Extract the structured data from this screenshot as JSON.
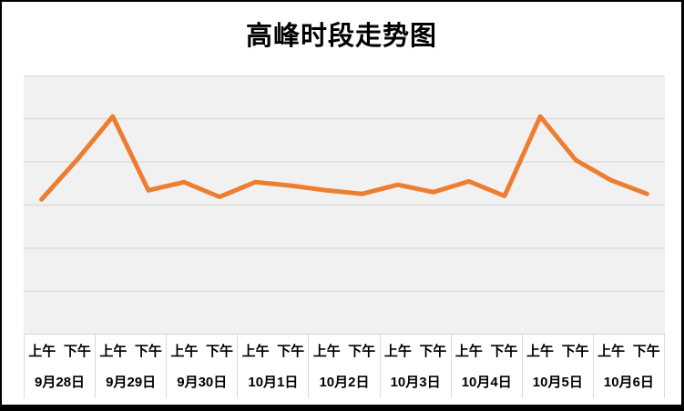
{
  "chart_data": {
    "type": "line",
    "title": "高峰时段走势图",
    "categories": [
      {
        "date": "9月28日",
        "periods": [
          "上午",
          "下午"
        ]
      },
      {
        "date": "9月29日",
        "periods": [
          "上午",
          "下午"
        ]
      },
      {
        "date": "9月30日",
        "periods": [
          "上午",
          "下午"
        ]
      },
      {
        "date": "10月1日",
        "periods": [
          "上午",
          "下午"
        ]
      },
      {
        "date": "10月2日",
        "periods": [
          "上午",
          "下午"
        ]
      },
      {
        "date": "10月3日",
        "periods": [
          "上午",
          "下午"
        ]
      },
      {
        "date": "10月4日",
        "periods": [
          "上午",
          "下午"
        ]
      },
      {
        "date": "10月5日",
        "periods": [
          "上午",
          "下午"
        ]
      },
      {
        "date": "10月6日",
        "periods": [
          "上午",
          "下午"
        ]
      }
    ],
    "series": [
      {
        "values": [
          3.13,
          4.05,
          5.05,
          3.34,
          3.53,
          3.19,
          3.53,
          3.45,
          3.34,
          3.26,
          3.47,
          3.3,
          3.55,
          3.21,
          5.05,
          4.04,
          3.57,
          3.26
        ]
      }
    ],
    "ylim": [
      0,
      6
    ],
    "gridline_step": 1,
    "grid": true,
    "legend": false,
    "y_tick_labels_visible": false,
    "colors": {
      "line": "#ED7D31",
      "plot_background": "#F1F1F1",
      "gridline": "#D9D9D9",
      "axis_border": "#D9D9D9",
      "text": "#000000",
      "frame": "#000000",
      "background": "#FFFFFF"
    }
  }
}
